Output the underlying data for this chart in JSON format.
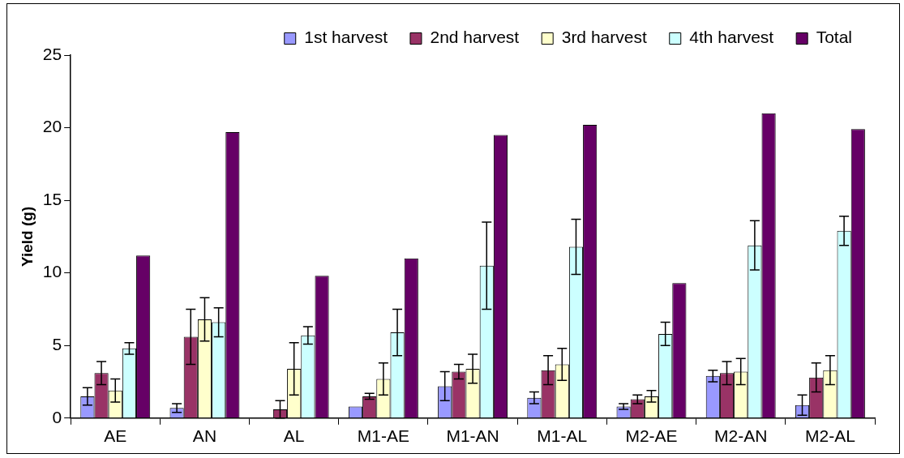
{
  "chart_data": {
    "type": "bar",
    "ylabel": "Yield (g)",
    "categories": [
      "AE",
      "AN",
      "AL",
      "M1-AE",
      "M1-AN",
      "M1-AL",
      "M2-AE",
      "M2-AN",
      "M2-AL"
    ],
    "series": [
      {
        "name": "1st harvest",
        "color": "#9999ff",
        "values": [
          1.5,
          0.7,
          null,
          0.8,
          2.2,
          1.4,
          0.8,
          2.9,
          0.9
        ],
        "errors": [
          0.6,
          0.3,
          null,
          null,
          1.0,
          0.4,
          0.2,
          0.4,
          0.7
        ]
      },
      {
        "name": "2nd harvest",
        "color": "#993366",
        "values": [
          3.1,
          5.6,
          0.6,
          1.5,
          3.2,
          3.3,
          1.3,
          3.1,
          2.8
        ],
        "errors": [
          0.8,
          1.9,
          0.6,
          0.2,
          0.5,
          1.0,
          0.3,
          0.8,
          1.0
        ]
      },
      {
        "name": "3rd harvest",
        "color": "#ffffcc",
        "values": [
          1.9,
          6.8,
          3.4,
          2.7,
          3.4,
          3.7,
          1.5,
          3.2,
          3.3
        ],
        "errors": [
          0.8,
          1.5,
          1.8,
          1.1,
          1.0,
          1.1,
          0.4,
          0.9,
          1.0
        ]
      },
      {
        "name": "4th harvest",
        "color": "#ccffff",
        "values": [
          4.8,
          6.6,
          5.7,
          5.9,
          10.5,
          11.8,
          5.8,
          11.9,
          12.9
        ],
        "errors": [
          0.4,
          1.0,
          0.6,
          1.6,
          3.0,
          1.9,
          0.8,
          1.7,
          1.0
        ]
      },
      {
        "name": "Total",
        "color": "#660066",
        "values": [
          11.2,
          19.7,
          9.8,
          11.0,
          19.5,
          20.2,
          9.3,
          21.0,
          19.9
        ]
      }
    ],
    "ylim": [
      0,
      25
    ],
    "yticks": [
      0,
      5,
      10,
      15,
      20,
      25
    ],
    "grid": false,
    "legend": "top right"
  }
}
